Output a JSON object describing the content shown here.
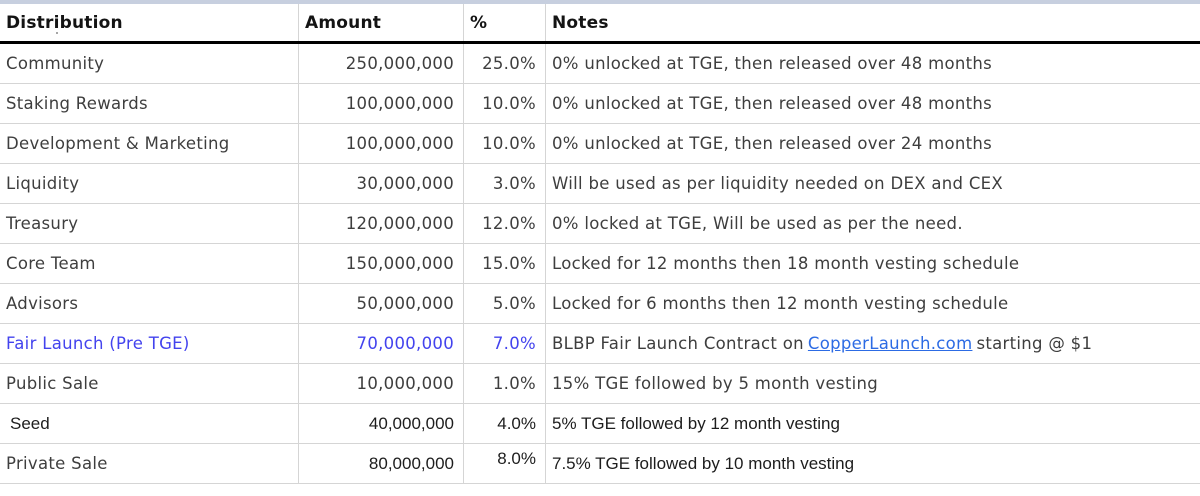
{
  "table": {
    "columns": [
      "Distribution",
      "Amount",
      "%",
      "Notes"
    ],
    "accent_color": "#4343ee",
    "link_color": "#2c6be4",
    "rows": [
      {
        "distribution": "Community",
        "amount": "250,000,000",
        "percent": "25.0%",
        "note": "0% unlocked at TGE, then released over 48 months"
      },
      {
        "distribution": "Staking Rewards",
        "amount": "100,000,000",
        "percent": "10.0%",
        "note": "0% unlocked at TGE, then released over 48 months"
      },
      {
        "distribution": "Development & Marketing",
        "amount": "100,000,000",
        "percent": "10.0%",
        "note": "0% unlocked at TGE, then released over 24 months"
      },
      {
        "distribution": "Liquidity",
        "amount": "30,000,000",
        "percent": "3.0%",
        "note": "Will be used as per liquidity needed on DEX and CEX"
      },
      {
        "distribution": "Treasury",
        "amount": "120,000,000",
        "percent": "12.0%",
        "note": "0% locked at TGE, Will be used as per the need."
      },
      {
        "distribution": "Core Team",
        "amount": "150,000,000",
        "percent": "15.0%",
        "note": "Locked for 12 months then 18 month vesting schedule"
      },
      {
        "distribution": "Advisors",
        "amount": "50,000,000",
        "percent": "5.0%",
        "note": "Locked for 6 months then 12 month vesting schedule"
      },
      {
        "distribution": "Fair Launch (Pre TGE)",
        "amount": "70,000,000",
        "percent": "7.0%",
        "note_prefix": "BLBP Fair Launch Contract on",
        "note_link": "CopperLaunch.com",
        "note_suffix": "starting @ $1"
      },
      {
        "distribution": "Public Sale",
        "amount": "10,000,000",
        "percent": "1.0%",
        "note": "15% TGE followed by 5 month vesting"
      },
      {
        "distribution": "Seed",
        "amount": "40,000,000",
        "percent": "4.0%",
        "note": "5% TGE followed by 12 month vesting"
      },
      {
        "distribution": "Private Sale",
        "amount": "80,000,000",
        "percent": "8.0%",
        "note": "7.5% TGE followed by 10 month vesting"
      }
    ]
  }
}
